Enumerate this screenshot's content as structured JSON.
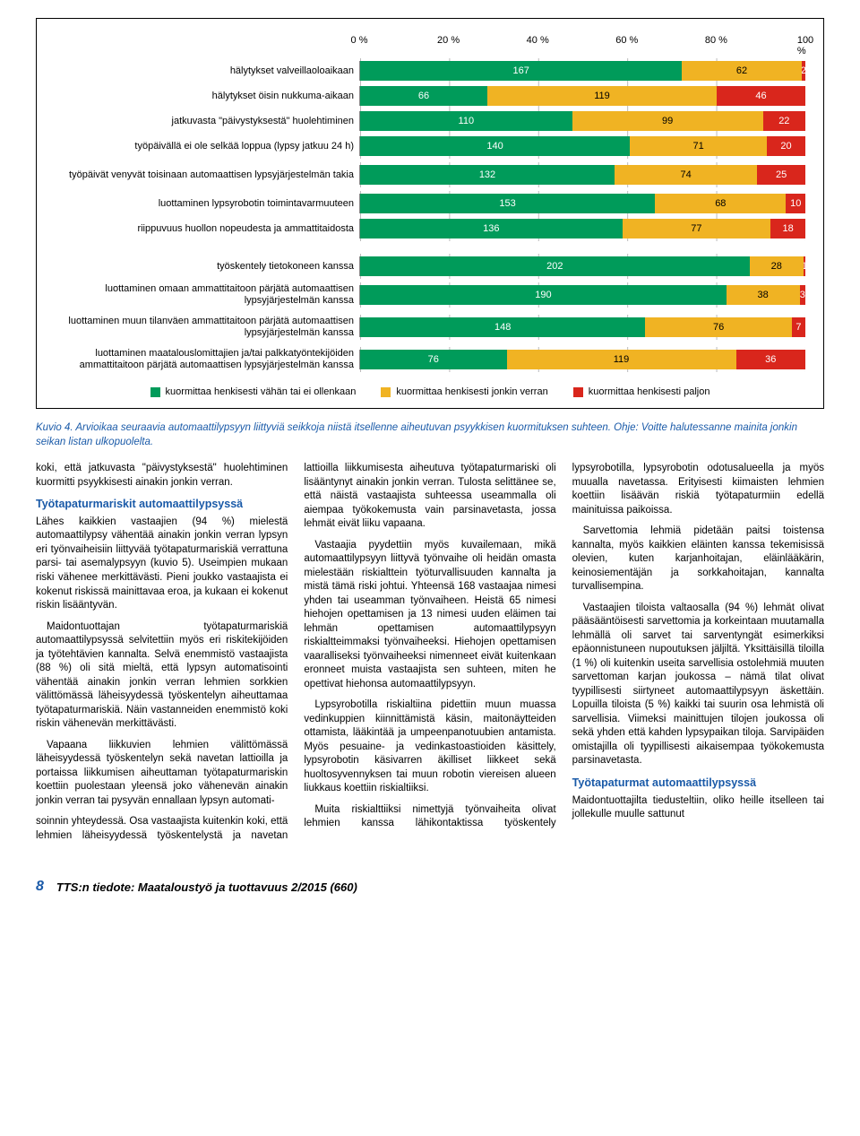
{
  "chart": {
    "type": "stacked-bar-horizontal",
    "axis_ticks": [
      "0 %",
      "20 %",
      "40 %",
      "60 %",
      "80 %",
      "100 %"
    ],
    "colors": {
      "low": "#009b5a",
      "mid": "#f0b323",
      "high": "#d9261c",
      "grid": "#bbbbbb",
      "border": "#000000",
      "bg": "#ffffff"
    },
    "rows": [
      {
        "label": "hälytykset valveillaoloaikaan",
        "v": [
          167,
          62,
          2
        ],
        "tall": false
      },
      {
        "label": "hälytykset öisin nukkuma-aikaan",
        "v": [
          66,
          119,
          46
        ],
        "tall": false
      },
      {
        "label": "jatkuvasta \"päivystyksestä\" huolehtiminen",
        "v": [
          110,
          99,
          22
        ],
        "tall": false
      },
      {
        "label": "työpäivällä ei ole selkää loppua (lypsy jatkuu 24 h)",
        "v": [
          140,
          71,
          20
        ],
        "tall": false
      },
      {
        "label": "työpäivät venyvät toisinaan automaattisen lypsyjärjestelmän takia",
        "v": [
          132,
          74,
          25
        ],
        "tall": true
      },
      {
        "label": "luottaminen lypsyrobotin toimintavarmuuteen",
        "v": [
          153,
          68,
          10
        ],
        "tall": false
      },
      {
        "label": "riippuvuus huollon nopeudesta ja ammattitaidosta",
        "v": [
          136,
          77,
          18
        ],
        "tall": false
      },
      {
        "label": "työskentely tietokoneen kanssa",
        "v": [
          202,
          28,
          1
        ],
        "tall": false
      },
      {
        "label": "luottaminen omaan ammattitaitoon pärjätä automaattisen lypsyjärjestelmän kanssa",
        "v": [
          190,
          38,
          3
        ],
        "tall": true
      },
      {
        "label": "luottaminen muun tilanväen ammattitaitoon pärjätä automaattisen lypsyjärjestelmän kanssa",
        "v": [
          148,
          76,
          7
        ],
        "tall": true
      },
      {
        "label": "luottaminen maatalouslomittajien ja/tai palkkatyöntekijöiden ammattitaitoon pärjätä automaattisen lypsyjärjestelmän kanssa",
        "v": [
          76,
          119,
          36
        ],
        "tall": true
      }
    ],
    "legend": [
      {
        "color": "#009b5a",
        "label": "kuormittaa henkisesti vähän tai ei ollenkaan"
      },
      {
        "color": "#f0b323",
        "label": "kuormittaa henkisesti jonkin verran"
      },
      {
        "color": "#d9261c",
        "label": "kuormittaa henkisesti paljon"
      }
    ]
  },
  "caption": "Kuvio 4. Arvioikaa seuraavia automaattilypsyyn liittyviä seikkoja niistä itsellenne aiheutuvan psyykkisen kuormituksen suhteen. Ohje: Voitte halutessanne mainita jonkin seikan listan ulkopuolelta.",
  "body": {
    "p1": "koki, että jatkuvasta \"päivystyksestä\" huolehtiminen kuormitti psyykkisesti ainakin jonkin verran.",
    "h1": "Työtapaturmariskit automaattilypsyssä",
    "p2": "Lähes kaikkien vastaajien (94 %) mielestä automaattilypsy vähentää ainakin jonkin verran lypsyn eri työnvaiheisiin liittyvää työtapaturmariskiä verrattuna parsi- tai asemalypsyyn (kuvio 5). Useimpien mukaan riski vähenee merkittävästi. Pieni joukko vastaajista ei kokenut riskissä mainittavaa eroa, ja kukaan ei kokenut riskin lisääntyvän.",
    "p3": "Maidontuottajan työtapaturmariskiä automaattilypsyssä selvitettiin myös eri riskitekijöiden ja työtehtävien kannalta. Selvä enemmistö vastaajista (88 %) oli sitä mieltä, että lypsyn automatisointi vähentää ainakin jonkin verran lehmien sorkkien välittömässä läheisyydessä työskentelyn aiheuttamaa työtapaturmariskiä. Näin vastanneiden enemmistö koki riskin vähenevän merkittävästi.",
    "p4": "Vapaana liikkuvien lehmien välittömässä läheisyydessä työskentelyn sekä navetan lattioilla ja portaissa liikkumisen aiheuttaman työtapaturmariskin koettiin puolestaan yleensä joko vähenevän ainakin jonkin verran tai pysyvän ennallaan lypsyn automati-",
    "p5": "soinnin yhteydessä. Osa vastaajista kuitenkin koki, että lehmien läheisyydessä työskentelystä ja navetan lattioilla liikkumisesta aiheutuva työtapaturmariski oli lisääntynyt ainakin jonkin verran. Tulosta selittänee se, että näistä vastaajista suhteessa useammalla oli aiempaa työkokemusta vain parsinavetasta, jossa lehmät eivät liiku vapaana.",
    "p6": "Vastaajia pyydettiin myös kuvailemaan, mikä automaattilypsyyn liittyvä työnvaihe oli heidän omasta mielestään riskialttein työturvallisuuden kannalta ja mistä tämä riski johtui. Yhteensä 168 vastaajaa nimesi yhden tai useamman työnvaiheen. Heistä 65 nimesi hiehojen opettamisen ja 13 nimesi uuden eläimen tai lehmän opettamisen automaattilypsyyn riskialtteimmaksi työnvaiheeksi. Hiehojen opettamisen vaaralliseksi työnvaiheeksi nimenneet eivät kuitenkaan eronneet muista vastaajista sen suhteen, miten he opettivat hiehonsa automaattilypsyyn.",
    "p7": "Lypsyrobotilla riskialtiina pidettiin muun muassa vedinkuppien kiinnittämistä käsin, maitonäytteiden ottamista, lääkintää ja umpeenpanotuubien antamista. Myös pesuaine- ja vedinkastoastioiden käsittely, lypsyrobotin käsivarren äkilliset liikkeet sekä huoltosyvennyksen tai muun robotin viereisen alueen liukkaus koettiin riskialtiiksi.",
    "p8": "Muita riskialttiiksi nimettyjä työnvaiheita olivat lehmien kanssa lähikontaktissa työskentely lypsyrobotilla, lypsyrobotin odotusalueella ja myös muualla navetassa. Erityisesti kiimaisten lehmien koettiin lisäävän riskiä työtapaturmiin edellä mainituissa paikoissa.",
    "p9": "Sarvettomia lehmiä pidetään paitsi toistensa kannalta, myös kaikkien eläinten kanssa tekemisissä olevien, kuten karjanhoitajan, eläinlääkärin, keinosiementäjän ja sorkkahoitajan, kannalta turvallisempina.",
    "p10": "Vastaajien tiloista valtaosalla (94 %) lehmät olivat pääsääntöisesti sarvettomia ja korkeintaan muutamalla lehmällä oli sarvet tai sarventyngät esimerkiksi epäonnistuneen nupoutuksen jäljiltä. Yksittäisillä tiloilla (1 %) oli kuitenkin useita sarvellisia ostolehmiä muuten sarvettoman karjan joukossa – nämä tilat olivat tyypillisesti siirtyneet automaattilypsyyn äskettäin. Lopuilla tiloista (5 %) kaikki tai suurin osa lehmistä oli sarvellisia. Viimeksi mainittujen tilojen joukossa oli sekä yhden että kahden lypsypaikan tiloja. Sarvipäiden omistajilla oli tyypillisesti aikaisempaa työkokemusta parsinavetasta.",
    "h2": "Työtapaturmat automaattilypsyssä",
    "p11": "Maidontuottajilta tiedusteltiin, oliko heille itselleen tai jollekulle muulle sattunut"
  },
  "footer": {
    "page": "8",
    "title": "TTS:n tiedote: Maataloustyö ja tuottavuus 2/2015 (660)"
  }
}
